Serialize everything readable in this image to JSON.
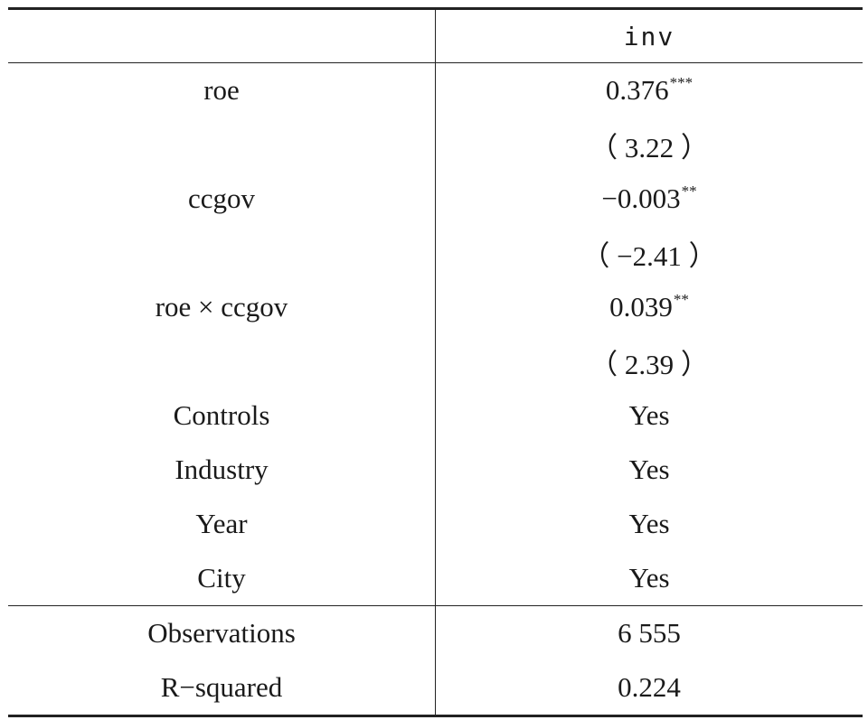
{
  "header": {
    "col1": "",
    "col2": "inv"
  },
  "rows": [
    {
      "label": "roe",
      "value": "0.376",
      "stars": "***"
    },
    {
      "label": "",
      "value": "（ 3.22 ）",
      "stars": ""
    },
    {
      "label": "ccgov",
      "value": "−0.003",
      "stars": "**"
    },
    {
      "label": "",
      "value": "（ −2.41 ）",
      "stars": ""
    },
    {
      "label": "roe × ccgov",
      "value": "0.039",
      "stars": "**"
    },
    {
      "label": "",
      "value": "（ 2.39 ）",
      "stars": ""
    },
    {
      "label": "Controls",
      "value": "Yes",
      "stars": ""
    },
    {
      "label": "Industry",
      "value": "Yes",
      "stars": ""
    },
    {
      "label": "Year",
      "value": "Yes",
      "stars": ""
    },
    {
      "label": "City",
      "value": "Yes",
      "stars": ""
    }
  ],
  "footer": [
    {
      "label": "Observations",
      "value": "6 555"
    },
    {
      "label": "R−squared",
      "value": "0.224"
    }
  ]
}
